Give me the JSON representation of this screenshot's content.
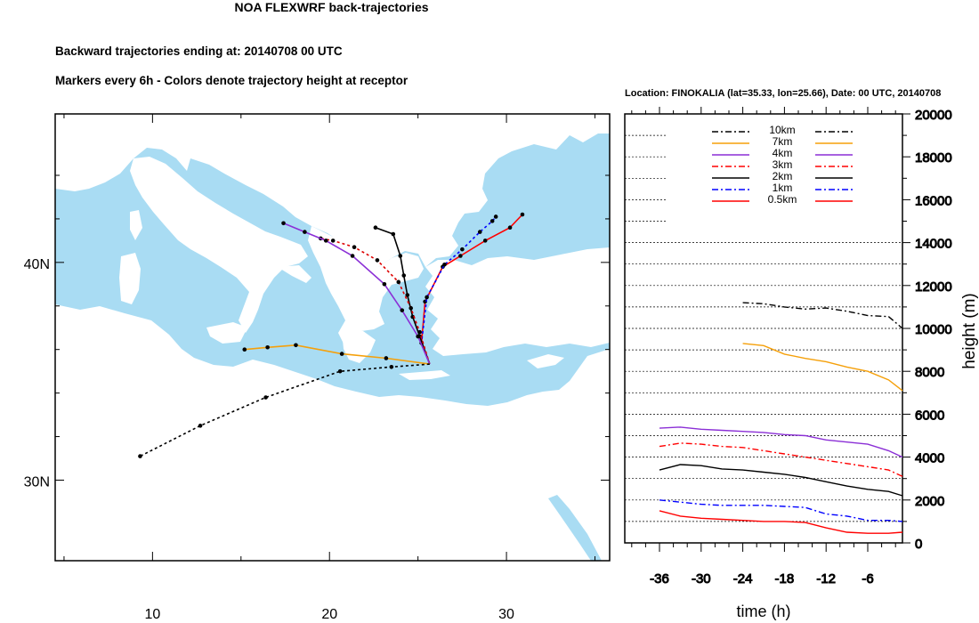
{
  "header": {
    "title": "NOA FLEXWRF back-trajectories",
    "subtitle_1": "Backward trajectories ending at: 20140708  00 UTC",
    "subtitle_2": "Markers every 6h - Colors denote trajectory height at receptor"
  },
  "chart_data": [
    {
      "type": "map",
      "receptor": {
        "lon": 25.66,
        "lat": 35.33
      },
      "x_ticks": [
        "10",
        "20",
        "30"
      ],
      "y_ticks": [
        "30N",
        "40N"
      ],
      "trajectories": [
        {
          "level": "0.5km",
          "color": "#ff0000",
          "points": [
            [
              25.66,
              35.33
            ],
            [
              25.2,
              36.3
            ],
            [
              25.4,
              38.2
            ],
            [
              26.4,
              39.8
            ],
            [
              27.4,
              40.3
            ],
            [
              28.8,
              41.0
            ],
            [
              30.2,
              41.6
            ],
            [
              30.9,
              42.2
            ]
          ]
        },
        {
          "level": "1km",
          "color": "#0000ff",
          "points": [
            [
              25.66,
              35.33
            ],
            [
              25.2,
              36.3
            ],
            [
              25.5,
              38.4
            ],
            [
              26.5,
              39.9
            ],
            [
              27.5,
              40.6
            ],
            [
              28.5,
              41.4
            ],
            [
              29.2,
              41.9
            ],
            [
              29.4,
              42.1
            ]
          ]
        },
        {
          "level": "2km",
          "color": "#000000",
          "points": [
            [
              25.66,
              35.33
            ],
            [
              25.1,
              36.6
            ],
            [
              24.7,
              37.5
            ],
            [
              24.4,
              38.5
            ],
            [
              24.2,
              39.4
            ],
            [
              24.0,
              40.3
            ],
            [
              23.6,
              41.3
            ],
            [
              22.6,
              41.6
            ]
          ]
        },
        {
          "level": "3km",
          "color": "#dd0000",
          "points": [
            [
              25.66,
              35.33
            ],
            [
              25.1,
              36.8
            ],
            [
              24.6,
              37.9
            ],
            [
              23.9,
              39.1
            ],
            [
              22.7,
              40.1
            ],
            [
              21.4,
              40.7
            ],
            [
              20.2,
              41.0
            ],
            [
              19.5,
              41.1
            ]
          ]
        },
        {
          "level": "4km",
          "color": "#8b2fd6",
          "points": [
            [
              25.66,
              35.33
            ],
            [
              25.0,
              36.6
            ],
            [
              24.1,
              37.8
            ],
            [
              23.1,
              39.0
            ],
            [
              21.3,
              40.3
            ],
            [
              19.8,
              41.0
            ],
            [
              18.6,
              41.4
            ],
            [
              17.4,
              41.8
            ]
          ]
        },
        {
          "level": "7km",
          "color": "#f5a00a",
          "points": [
            [
              25.66,
              35.33
            ],
            [
              23.2,
              35.6
            ],
            [
              20.7,
              35.8
            ],
            [
              18.1,
              36.2
            ],
            [
              16.5,
              36.1
            ],
            [
              15.2,
              36.0
            ]
          ]
        },
        {
          "level": "10km",
          "color": "#000000",
          "points": [
            [
              25.66,
              35.33
            ],
            [
              23.5,
              35.2
            ],
            [
              20.6,
              35.0
            ],
            [
              16.4,
              33.8
            ],
            [
              12.7,
              32.5
            ],
            [
              9.3,
              31.1
            ]
          ]
        }
      ]
    },
    {
      "type": "line",
      "location": "Location: FINOKALIA (lat=35.33,  lon=25.66), Date: 00 UTC, 20140708",
      "xlabel": "time (h)",
      "ylabel": "height (m)",
      "xlim": [
        -41,
        -1
      ],
      "ylim": [
        0,
        20000
      ],
      "x_ticks": [
        -36,
        -30,
        -24,
        -18,
        -12,
        -6
      ],
      "y_ticks": [
        0,
        2000,
        4000,
        6000,
        8000,
        10000,
        12000,
        14000,
        16000,
        18000,
        20000
      ],
      "series": [
        {
          "name": "10km",
          "color": "#000000",
          "dash": "dashdot",
          "x": [
            -24,
            -21,
            -18,
            -15,
            -12,
            -9,
            -6,
            -3,
            -1
          ],
          "y": [
            11200,
            11150,
            11000,
            10900,
            10950,
            10800,
            10600,
            10550,
            10000
          ]
        },
        {
          "name": "7km",
          "color": "#f5a00a",
          "dash": "solid",
          "x": [
            -24,
            -21,
            -18,
            -15,
            -12,
            -9,
            -6,
            -3,
            -1
          ],
          "y": [
            9300,
            9200,
            8800,
            8600,
            8450,
            8200,
            8000,
            7600,
            7100
          ]
        },
        {
          "name": "4km",
          "color": "#8b2fd6",
          "dash": "solid",
          "x": [
            -36,
            -33,
            -30,
            -27,
            -24,
            -21,
            -18,
            -15,
            -12,
            -9,
            -6,
            -3,
            -1
          ],
          "y": [
            5350,
            5400,
            5300,
            5250,
            5200,
            5150,
            5050,
            5000,
            4800,
            4700,
            4600,
            4300,
            4000
          ]
        },
        {
          "name": "3km",
          "color": "#ff0000",
          "dash": "dashdot",
          "x": [
            -36,
            -33,
            -30,
            -27,
            -24,
            -21,
            -18,
            -15,
            -12,
            -9,
            -6,
            -3,
            -1
          ],
          "y": [
            4500,
            4650,
            4600,
            4500,
            4450,
            4300,
            4150,
            4000,
            3850,
            3700,
            3550,
            3400,
            3100
          ]
        },
        {
          "name": "2km",
          "color": "#000000",
          "dash": "solid",
          "x": [
            -36,
            -33,
            -30,
            -27,
            -24,
            -21,
            -18,
            -15,
            -12,
            -9,
            -6,
            -3,
            -1
          ],
          "y": [
            3400,
            3650,
            3600,
            3450,
            3400,
            3300,
            3200,
            3050,
            2850,
            2650,
            2500,
            2400,
            2200
          ]
        },
        {
          "name": "1km",
          "color": "#0000ff",
          "dash": "dashdot",
          "x": [
            -36,
            -33,
            -30,
            -27,
            -24,
            -21,
            -18,
            -15,
            -12,
            -9,
            -6,
            -3,
            -1
          ],
          "y": [
            2000,
            1900,
            1800,
            1750,
            1750,
            1750,
            1700,
            1650,
            1350,
            1250,
            1050,
            1050,
            1000
          ]
        },
        {
          "name": "0.5km",
          "color": "#ff0000",
          "dash": "solid",
          "x": [
            -36,
            -33,
            -30,
            -27,
            -24,
            -21,
            -18,
            -15,
            -12,
            -9,
            -6,
            -3,
            -1
          ],
          "y": [
            1500,
            1250,
            1150,
            1100,
            1050,
            1000,
            1000,
            950,
            700,
            500,
            450,
            450,
            500
          ]
        }
      ],
      "legend_order": [
        "10km",
        "7km",
        "4km",
        "3km",
        "2km",
        "1km",
        "0.5km"
      ],
      "legend_placement": "top-center"
    }
  ]
}
